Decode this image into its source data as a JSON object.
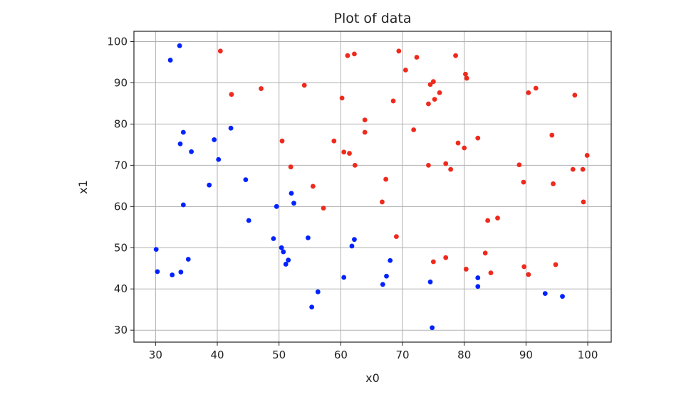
{
  "chart_data": {
    "type": "scatter",
    "title": "Plot of data",
    "xlabel": "x0",
    "ylabel": "x1",
    "xlim": [
      26.5,
      103.8
    ],
    "ylim": [
      27.1,
      102.5
    ],
    "xticks": [
      "30",
      "40",
      "50",
      "60",
      "70",
      "80",
      "90",
      "100"
    ],
    "yticks": [
      "30",
      "40",
      "50",
      "60",
      "70",
      "80",
      "90",
      "100"
    ],
    "grid": true,
    "colors": {
      "class_0": "#0022ff",
      "class_1": "#ee2a1d"
    },
    "series": [
      {
        "color": "#0022ff",
        "points": [
          [
            33.9,
            99.0
          ],
          [
            32.4,
            95.5
          ],
          [
            42.2,
            79.0
          ],
          [
            34.5,
            78.0
          ],
          [
            39.5,
            76.2
          ],
          [
            34.0,
            75.2
          ],
          [
            35.8,
            73.3
          ],
          [
            40.2,
            71.4
          ],
          [
            44.6,
            66.5
          ],
          [
            38.7,
            65.2
          ],
          [
            52.0,
            63.2
          ],
          [
            52.4,
            60.8
          ],
          [
            34.5,
            60.4
          ],
          [
            49.6,
            60.0
          ],
          [
            45.1,
            56.6
          ],
          [
            54.7,
            52.4
          ],
          [
            49.1,
            52.2
          ],
          [
            62.2,
            52.0
          ],
          [
            61.8,
            50.4
          ],
          [
            30.1,
            49.6
          ],
          [
            50.4,
            50.0
          ],
          [
            50.7,
            49.0
          ],
          [
            35.3,
            47.2
          ],
          [
            51.5,
            47.0
          ],
          [
            51.1,
            46.0
          ],
          [
            30.3,
            44.2
          ],
          [
            34.1,
            44.1
          ],
          [
            32.7,
            43.4
          ],
          [
            67.4,
            43.1
          ],
          [
            60.5,
            42.8
          ],
          [
            82.2,
            42.7
          ],
          [
            68.0,
            46.9
          ],
          [
            74.5,
            41.7
          ],
          [
            66.8,
            41.1
          ],
          [
            82.2,
            40.6
          ],
          [
            56.3,
            39.3
          ],
          [
            93.1,
            38.9
          ],
          [
            95.9,
            38.2
          ],
          [
            55.3,
            35.6
          ],
          [
            74.8,
            30.6
          ]
        ]
      },
      {
        "color": "#ee2a1d",
        "points": [
          [
            40.5,
            97.7
          ],
          [
            69.4,
            97.7
          ],
          [
            62.2,
            97.0
          ],
          [
            61.1,
            96.6
          ],
          [
            72.3,
            96.2
          ],
          [
            78.6,
            96.6
          ],
          [
            70.5,
            93.1
          ],
          [
            80.2,
            92.1
          ],
          [
            80.4,
            91.1
          ],
          [
            75.0,
            90.3
          ],
          [
            74.5,
            89.6
          ],
          [
            54.1,
            89.4
          ],
          [
            47.1,
            88.6
          ],
          [
            91.6,
            88.7
          ],
          [
            90.4,
            87.6
          ],
          [
            42.3,
            87.2
          ],
          [
            76.0,
            87.6
          ],
          [
            97.9,
            87.0
          ],
          [
            60.2,
            86.3
          ],
          [
            75.2,
            86.0
          ],
          [
            68.5,
            85.6
          ],
          [
            74.2,
            84.9
          ],
          [
            63.9,
            81.0
          ],
          [
            71.8,
            78.6
          ],
          [
            63.9,
            78.0
          ],
          [
            94.2,
            77.3
          ],
          [
            82.2,
            76.6
          ],
          [
            50.5,
            75.9
          ],
          [
            58.9,
            75.9
          ],
          [
            79.0,
            75.4
          ],
          [
            80.0,
            74.2
          ],
          [
            60.5,
            73.2
          ],
          [
            61.4,
            72.9
          ],
          [
            99.9,
            72.4
          ],
          [
            62.3,
            70.0
          ],
          [
            74.2,
            70.0
          ],
          [
            77.0,
            70.4
          ],
          [
            51.9,
            69.6
          ],
          [
            88.9,
            70.1
          ],
          [
            77.8,
            69.0
          ],
          [
            97.6,
            69.0
          ],
          [
            99.2,
            69.0
          ],
          [
            67.3,
            66.6
          ],
          [
            89.6,
            65.9
          ],
          [
            94.4,
            65.5
          ],
          [
            55.5,
            64.9
          ],
          [
            66.7,
            61.1
          ],
          [
            99.3,
            61.1
          ],
          [
            57.2,
            59.6
          ],
          [
            85.4,
            57.2
          ],
          [
            83.8,
            56.6
          ],
          [
            69.0,
            52.7
          ],
          [
            83.4,
            48.7
          ],
          [
            77.0,
            47.6
          ],
          [
            75.0,
            46.6
          ],
          [
            94.8,
            45.9
          ],
          [
            89.7,
            45.4
          ],
          [
            80.3,
            44.8
          ],
          [
            84.3,
            43.9
          ],
          [
            90.4,
            43.5
          ]
        ]
      }
    ]
  }
}
